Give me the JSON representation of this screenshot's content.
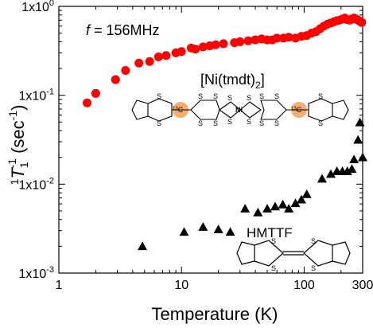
{
  "chart_data": {
    "type": "scatter",
    "title": "",
    "xlabel": "Temperature (K)",
    "ylabel_prefix": "1",
    "ylabel_symbol": "T",
    "ylabel_sub": "1",
    "ylabel_sup": "-1",
    "ylabel_unit": "(sec",
    "ylabel_unit_sup": "-1",
    "ylabel_close": ")",
    "x_scale": "log",
    "y_scale": "log",
    "xlim": [
      1,
      300
    ],
    "ylim": [
      0.001,
      1
    ],
    "x_ticks": [
      {
        "value": 1,
        "label": "1"
      },
      {
        "value": 10,
        "label": "10"
      },
      {
        "value": 100,
        "label": "100"
      },
      {
        "value": 300,
        "label": "300"
      }
    ],
    "y_ticks": [
      {
        "value": 1,
        "base": "1x10",
        "exp": "0"
      },
      {
        "value": 0.1,
        "base": "1x10",
        "exp": "-1"
      },
      {
        "value": 0.01,
        "base": "1x10",
        "exp": "-2"
      },
      {
        "value": 0.001,
        "base": "1x10",
        "exp": "-3"
      }
    ],
    "grid": false,
    "annotation_freq": {
      "symbol": "f",
      "text": " = 156MHz"
    },
    "series": [
      {
        "name": "[Ni(tmdt)2]",
        "label_main": "[Ni(tmdt)",
        "label_sub": "2",
        "label_end": "]",
        "marker": "circle",
        "color": "#ff0000",
        "points": [
          [
            1.7,
            0.082
          ],
          [
            2.0,
            0.105
          ],
          [
            2.9,
            0.15
          ],
          [
            3.5,
            0.19
          ],
          [
            4.5,
            0.23
          ],
          [
            5.5,
            0.24
          ],
          [
            6.5,
            0.27
          ],
          [
            7.5,
            0.28
          ],
          [
            9,
            0.3
          ],
          [
            10,
            0.31
          ],
          [
            12,
            0.34
          ],
          [
            13,
            0.33
          ],
          [
            15,
            0.35
          ],
          [
            17,
            0.36
          ],
          [
            19,
            0.37
          ],
          [
            22,
            0.38
          ],
          [
            27,
            0.39
          ],
          [
            30,
            0.4
          ],
          [
            35,
            0.41
          ],
          [
            40,
            0.42
          ],
          [
            45,
            0.43
          ],
          [
            50,
            0.42
          ],
          [
            55,
            0.42
          ],
          [
            60,
            0.44
          ],
          [
            68,
            0.44
          ],
          [
            75,
            0.45
          ],
          [
            85,
            0.44
          ],
          [
            95,
            0.46
          ],
          [
            105,
            0.47
          ],
          [
            115,
            0.5
          ],
          [
            125,
            0.52
          ],
          [
            135,
            0.56
          ],
          [
            145,
            0.6
          ],
          [
            155,
            0.63
          ],
          [
            165,
            0.65
          ],
          [
            175,
            0.67
          ],
          [
            185,
            0.69
          ],
          [
            195,
            0.7
          ],
          [
            205,
            0.72
          ],
          [
            215,
            0.74
          ],
          [
            225,
            0.71
          ],
          [
            235,
            0.7
          ],
          [
            245,
            0.72
          ],
          [
            255,
            0.74
          ],
          [
            265,
            0.72
          ],
          [
            275,
            0.7
          ],
          [
            285,
            0.68
          ],
          [
            295,
            0.66
          ]
        ]
      },
      {
        "name": "HMTTF",
        "marker": "triangle",
        "color": "#000000",
        "points": [
          [
            4.8,
            0.002
          ],
          [
            10.5,
            0.0029
          ],
          [
            15,
            0.0033
          ],
          [
            20,
            0.0031
          ],
          [
            25,
            0.0029
          ],
          [
            33,
            0.0053
          ],
          [
            42,
            0.0048
          ],
          [
            50,
            0.0053
          ],
          [
            58,
            0.0056
          ],
          [
            67,
            0.0059
          ],
          [
            75,
            0.0053
          ],
          [
            85,
            0.0061
          ],
          [
            95,
            0.0067
          ],
          [
            105,
            0.0077
          ],
          [
            140,
            0.0115
          ],
          [
            165,
            0.013
          ],
          [
            185,
            0.014
          ],
          [
            205,
            0.014
          ],
          [
            225,
            0.014
          ],
          [
            245,
            0.0148
          ],
          [
            255,
            0.019
          ],
          [
            275,
            0.0315
          ],
          [
            285,
            0.0495
          ],
          [
            300,
            0.02
          ]
        ]
      }
    ]
  },
  "molecule_labels": {
    "ni": "Ni",
    "s": "S",
    "c13_sup": "13",
    "c13_c": "C"
  }
}
